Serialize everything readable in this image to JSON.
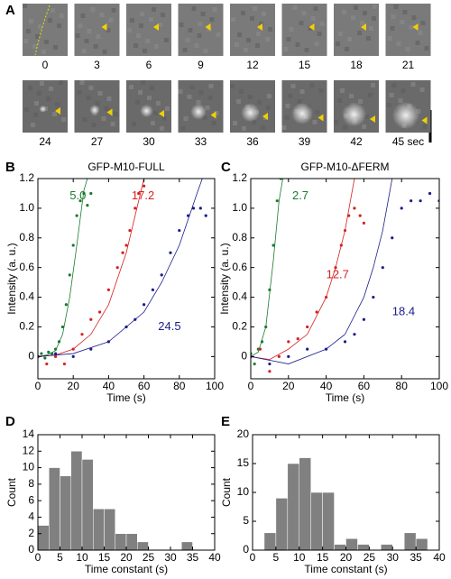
{
  "panel_labels": [
    "A",
    "B",
    "C",
    "D",
    "E"
  ],
  "panel_a": {
    "frames": [
      "0",
      "3",
      "6",
      "9",
      "12",
      "15",
      "18",
      "21",
      "24",
      "27",
      "30",
      "33",
      "36",
      "39",
      "42",
      "45 sec"
    ]
  },
  "chart_data": [
    {
      "type": "scatter",
      "title": "GFP-M10-FULL",
      "xlabel": "Time (s)",
      "ylabel": "Intensity (a. u.)",
      "xlim": [
        0,
        100
      ],
      "xticks": [
        0,
        20,
        40,
        60,
        80,
        100
      ],
      "ylim": [
        -0.15,
        1.2
      ],
      "yticks": [
        0,
        0.2,
        0.4,
        0.6,
        0.8,
        {
          "value": 1,
          "label": "1.0"
        },
        1.2
      ],
      "series": [
        {
          "label": "5.0",
          "color": "#1a7a2e",
          "x": [
            0,
            2,
            4,
            6,
            8,
            10,
            12,
            14,
            16,
            18,
            20,
            22,
            24,
            26,
            28,
            30
          ],
          "values": [
            0,
            0.02,
            -0.01,
            0.03,
            0.02,
            0.05,
            0.1,
            0.2,
            0.35,
            0.55,
            0.75,
            0.95,
            1.05,
            1.1,
            1.02,
            1.1
          ],
          "fit": {
            "x": [
              0,
              5,
              10,
              14,
              18,
              22,
              26,
              28
            ],
            "values": [
              0,
              0.01,
              0.04,
              0.15,
              0.4,
              0.75,
              1.12,
              1.2
            ]
          }
        },
        {
          "label": "17.2",
          "color": "#d62020",
          "x": [
            0,
            5,
            10,
            15,
            20,
            25,
            30,
            35,
            40,
            45,
            48,
            50,
            52,
            55,
            57,
            60
          ],
          "values": [
            0,
            -0.05,
            0,
            -0.05,
            0.05,
            0.15,
            0.25,
            0.3,
            0.45,
            0.6,
            0.7,
            0.75,
            0.85,
            1.0,
            1.1,
            1.15
          ],
          "fit": {
            "x": [
              0,
              10,
              20,
              30,
              40,
              50,
              55,
              60
            ],
            "values": [
              0,
              0.01,
              0.05,
              0.15,
              0.35,
              0.7,
              0.95,
              1.2
            ]
          }
        },
        {
          "label": "24.5",
          "color": "#1c1c8c",
          "x": [
            0,
            10,
            20,
            30,
            40,
            50,
            55,
            60,
            65,
            70,
            75,
            80,
            85,
            88,
            92,
            95
          ],
          "values": [
            0,
            0.02,
            0,
            0.05,
            0.1,
            0.2,
            0.25,
            0.35,
            0.45,
            0.55,
            0.7,
            0.85,
            0.95,
            1.0,
            1.0,
            0.95
          ],
          "fit": {
            "x": [
              0,
              20,
              40,
              60,
              70,
              80,
              90,
              93
            ],
            "values": [
              0,
              0.02,
              0.1,
              0.3,
              0.5,
              0.75,
              1.1,
              1.2
            ]
          }
        }
      ]
    },
    {
      "type": "scatter",
      "title": "GFP-M10-ΔFERM",
      "xlabel": "Time (s)",
      "ylabel": "Intensity (a. u.)",
      "xlim": [
        0,
        100
      ],
      "xticks": [
        0,
        20,
        40,
        60,
        80,
        100
      ],
      "ylim": [
        -0.15,
        1.2
      ],
      "yticks": [
        0,
        0.2,
        0.4,
        0.6,
        0.8,
        {
          "value": 1,
          "label": "1.0"
        },
        1.2
      ],
      "series": [
        {
          "label": "2.7",
          "color": "#1a7a2e",
          "x": [
            0,
            2,
            4,
            6,
            8,
            10,
            12,
            14,
            16
          ],
          "values": [
            0.02,
            -0.05,
            0.05,
            0.1,
            0.2,
            0.45,
            0.75,
            1.05,
            1.2
          ],
          "fit": {
            "x": [
              0,
              4,
              8,
              12,
              15,
              17
            ],
            "values": [
              0,
              0.03,
              0.2,
              0.65,
              1.05,
              1.2
            ]
          }
        },
        {
          "label": "12.7",
          "color": "#d62020",
          "x": [
            0,
            5,
            10,
            15,
            20,
            25,
            30,
            35,
            40,
            45,
            48,
            50,
            52,
            55,
            58,
            60
          ],
          "values": [
            0,
            0.05,
            -0.1,
            0,
            0.1,
            0.12,
            0.2,
            0.3,
            0.4,
            0.6,
            0.75,
            0.85,
            0.95,
            1.0,
            0.95,
            0.9
          ],
          "fit": {
            "x": [
              0,
              10,
              20,
              30,
              40,
              45,
              50,
              55
            ],
            "values": [
              0,
              -0.02,
              0.05,
              0.15,
              0.4,
              0.6,
              0.85,
              1.2
            ]
          }
        },
        {
          "label": "18.4",
          "color": "#1c1c8c",
          "x": [
            0,
            10,
            20,
            30,
            40,
            50,
            55,
            60,
            65,
            70,
            75,
            80,
            85,
            90,
            95,
            100
          ],
          "values": [
            0,
            -0.05,
            0,
            0.05,
            0.05,
            0.1,
            0.15,
            0.25,
            0.4,
            0.6,
            0.8,
            1.0,
            1.05,
            1.05,
            1.1,
            1.05
          ],
          "fit": {
            "x": [
              0,
              20,
              40,
              50,
              60,
              65,
              70,
              75
            ],
            "values": [
              0,
              -0.05,
              0.05,
              0.15,
              0.4,
              0.6,
              0.85,
              1.2
            ]
          }
        }
      ]
    },
    {
      "type": "histogram",
      "xlabel": "Time constant (s)",
      "ylabel": "Count",
      "color": "#808080",
      "bins": [
        0,
        2.5,
        5,
        7.5,
        10,
        12.5,
        15,
        17.5,
        20,
        22.5,
        25,
        27.5,
        30,
        32.5,
        35,
        37.5,
        40
      ],
      "values": [
        3,
        10,
        9,
        12,
        11,
        5,
        5,
        2,
        2,
        1,
        0,
        0,
        0,
        1,
        0,
        0
      ],
      "xlim": [
        0,
        40
      ],
      "xticks": [
        0,
        5,
        10,
        15,
        20,
        25,
        30,
        35,
        40
      ],
      "ylim": [
        0,
        14
      ],
      "yticks": [
        0,
        2,
        4,
        6,
        8,
        10,
        12,
        14
      ]
    },
    {
      "type": "histogram",
      "xlabel": "Time constant (s)",
      "ylabel": "Count",
      "color": "#808080",
      "bins": [
        0,
        2.5,
        5,
        7.5,
        10,
        12.5,
        15,
        17.5,
        20,
        22.5,
        25,
        27.5,
        30,
        32.5,
        35,
        37.5,
        40
      ],
      "values": [
        0,
        3,
        9,
        15,
        16,
        10,
        10,
        1,
        2,
        1,
        0,
        1,
        0,
        3,
        2,
        0
      ],
      "xlim": [
        0,
        40
      ],
      "xticks": [
        0,
        5,
        10,
        15,
        20,
        25,
        30,
        35,
        40
      ],
      "ylim": [
        0,
        20
      ],
      "yticks": [
        0,
        5,
        10,
        15,
        20
      ]
    }
  ]
}
